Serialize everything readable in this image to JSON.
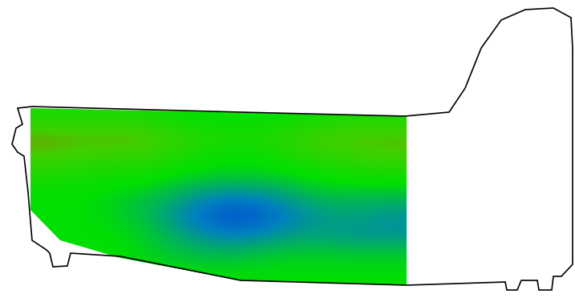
{
  "chart_data": {
    "type": "heatmap",
    "cells": [
      [
        6,
        6,
        6,
        5.5,
        5,
        5,
        5,
        5.5,
        6,
        6
      ],
      [
        8.5,
        8,
        8.5,
        7.5,
        6.5,
        6,
        6.5,
        7.5,
        8,
        8
      ],
      [
        7.5,
        7,
        7,
        6.5,
        5.5,
        5,
        5.5,
        6.5,
        7,
        7.5
      ],
      [
        6,
        5.5,
        5.5,
        5,
        4.5,
        4.5,
        4.5,
        5,
        5.5,
        5.5
      ],
      [
        5,
        5,
        4.5,
        4,
        3,
        2.5,
        3,
        4,
        4,
        4
      ],
      [
        5,
        5,
        4.5,
        3.5,
        2,
        1,
        2,
        3,
        3.5,
        3
      ],
      [
        5,
        5,
        5,
        4,
        3,
        2.5,
        3,
        3.5,
        3,
        3
      ],
      [
        5,
        5,
        5,
        4.5,
        4,
        4,
        4.5,
        4.5,
        4.5,
        4.5
      ],
      [
        5,
        5,
        5,
        5,
        5,
        5,
        5,
        5,
        5,
        5
      ]
    ],
    "color_range": [
      0,
      10
    ],
    "tick_labels": false
  }
}
